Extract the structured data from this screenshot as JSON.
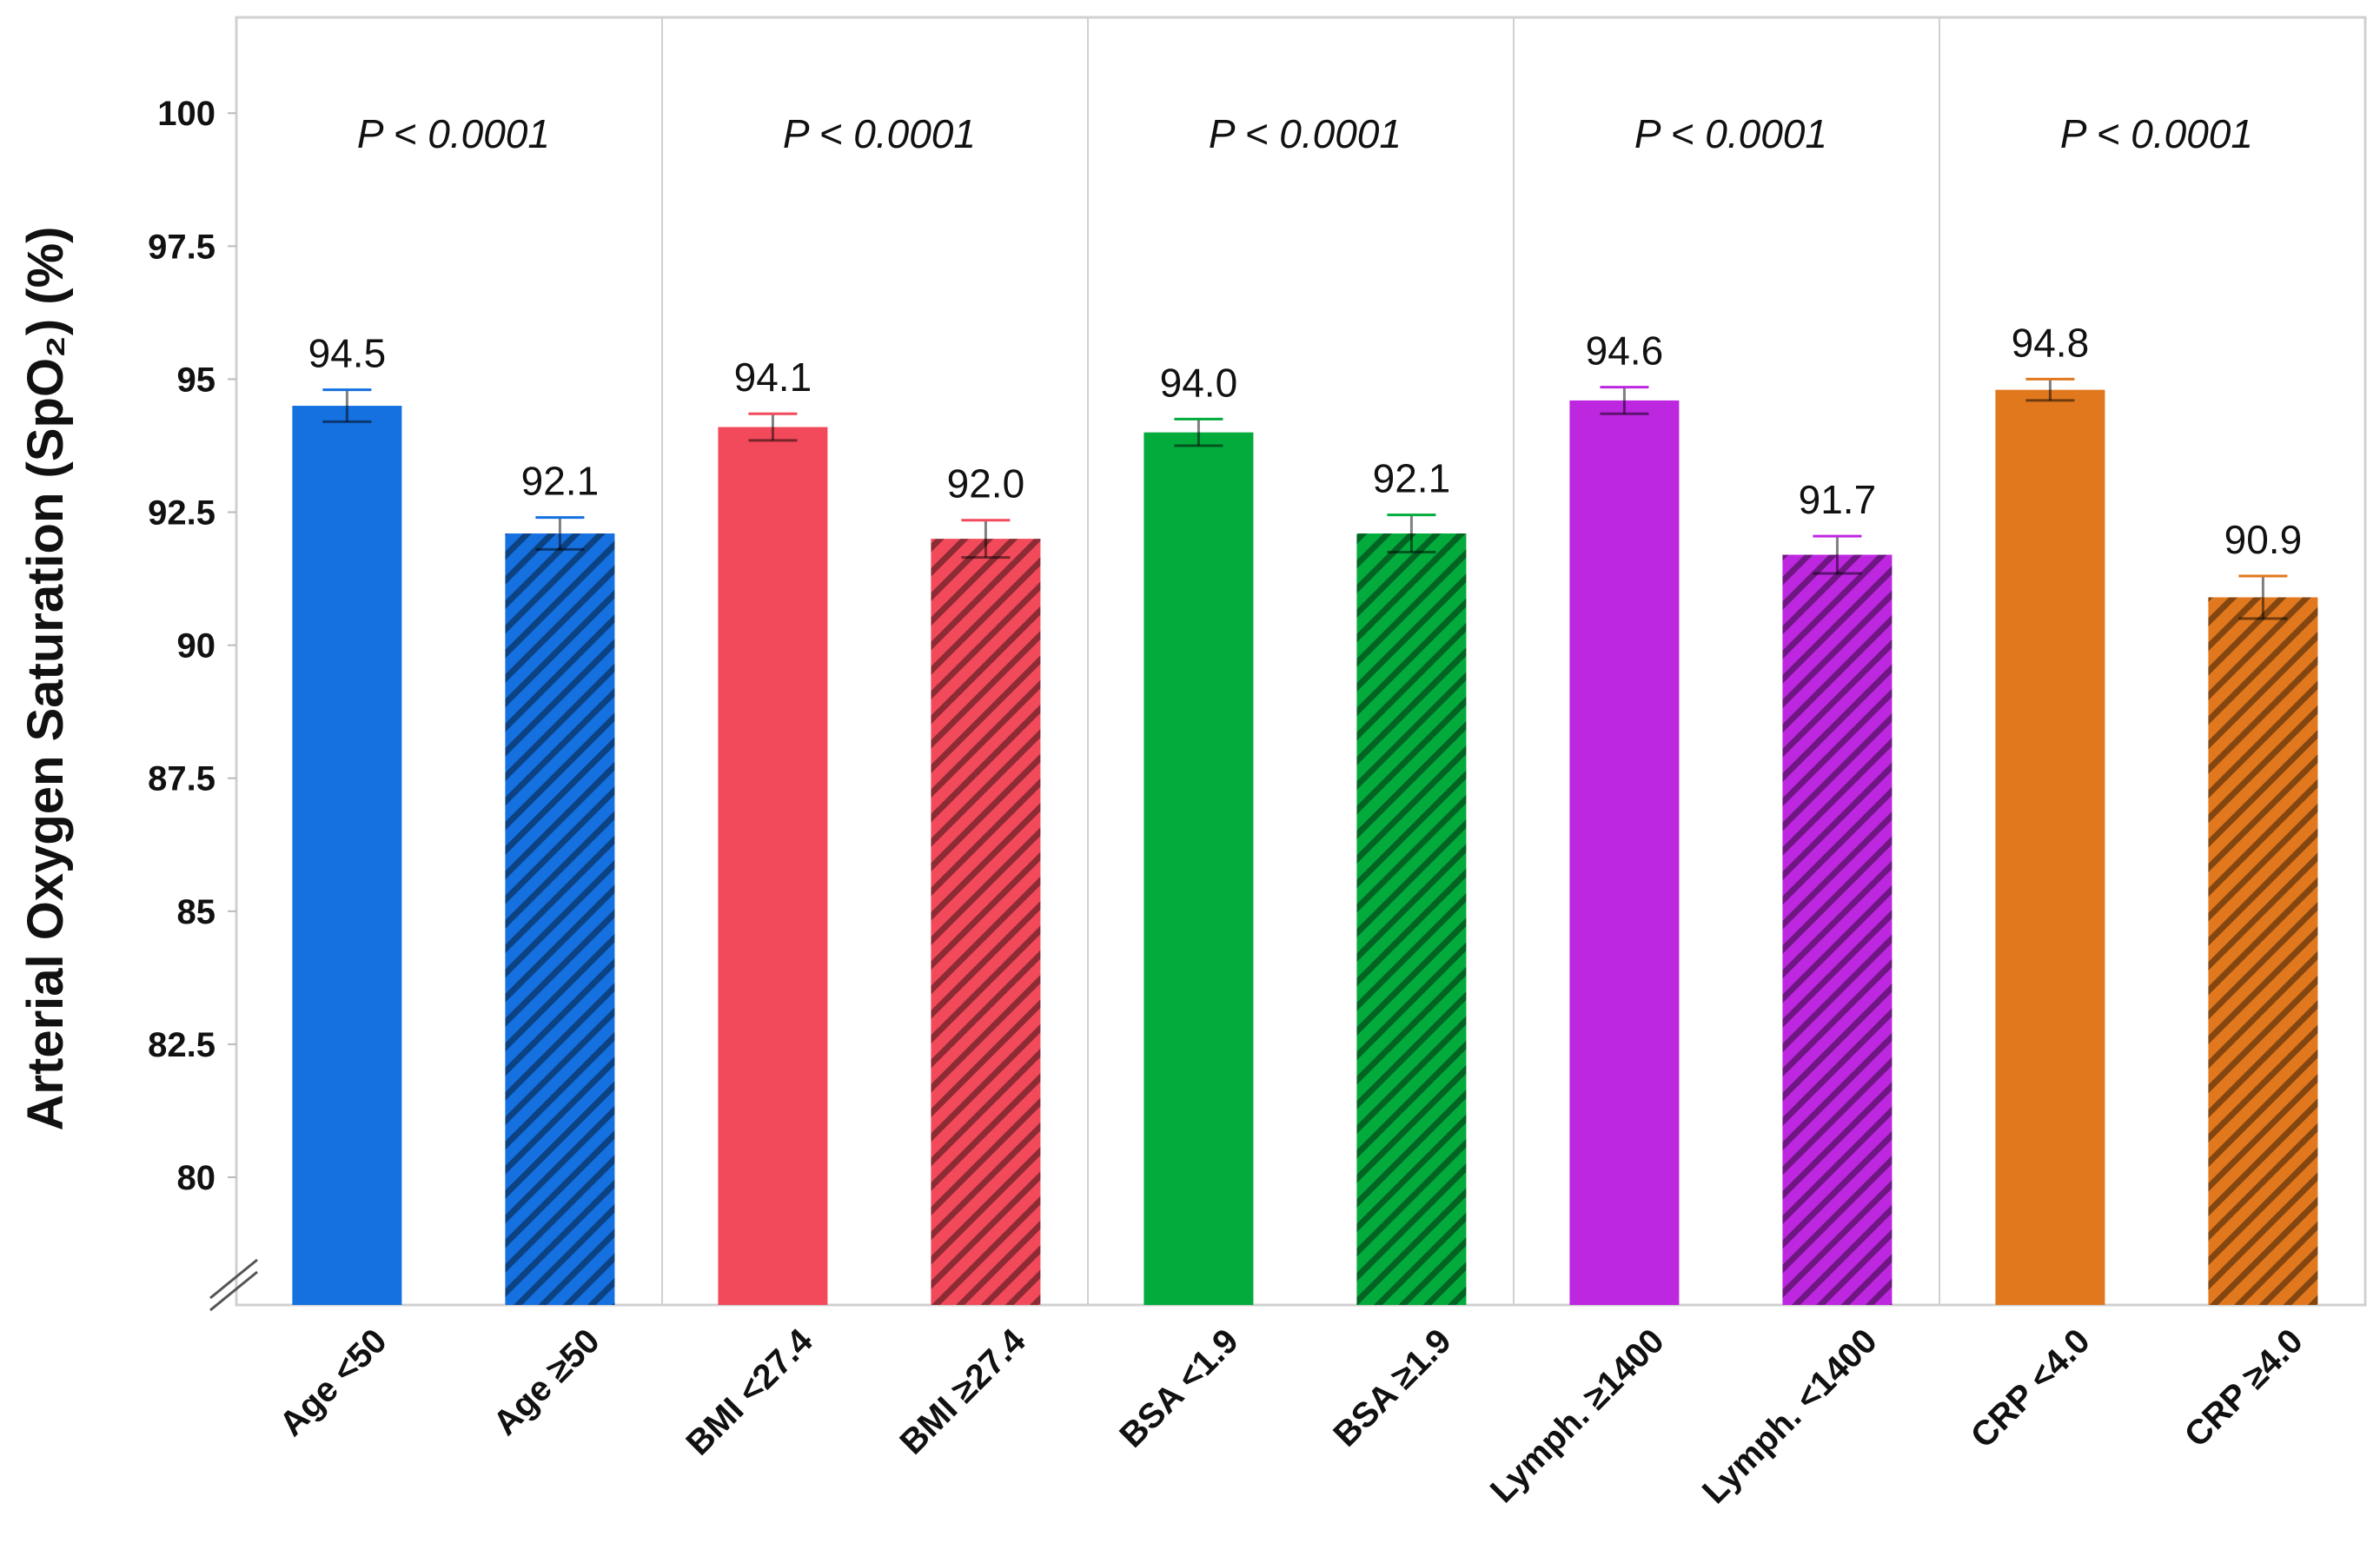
{
  "chart_data": {
    "type": "bar",
    "title": "",
    "xlabel": "",
    "ylabel": "Arterial Oxygen Saturation (SpO₂) (%)",
    "ylim": [
      77.6,
      101.8
    ],
    "axis_break": true,
    "yticks": [
      80,
      82.5,
      85,
      87.5,
      90,
      92.5,
      95,
      97.5,
      100
    ],
    "ytick_labels": [
      "80",
      "82.5",
      "85",
      "87.5",
      "90",
      "92.5",
      "95",
      "97.5",
      "100"
    ],
    "categories": [
      "Age <50",
      "Age ≥50",
      "BMI <27.4",
      "BMI ≥27.4",
      "BSA <1.9",
      "BSA ≥1.9",
      "Lymph. ≥1400",
      "Lymph. <1400",
      "CRP <4.0",
      "CRP ≥4.0"
    ],
    "values": [
      94.5,
      92.1,
      94.1,
      92.0,
      94.0,
      92.1,
      94.6,
      91.7,
      94.8,
      90.9
    ],
    "value_labels": [
      "94.5",
      "92.1",
      "94.1",
      "92.0",
      "94.0",
      "92.1",
      "94.6",
      "91.7",
      "94.8",
      "90.9"
    ],
    "error": [
      0.3,
      0.3,
      0.25,
      0.35,
      0.25,
      0.35,
      0.25,
      0.35,
      0.2,
      0.4
    ],
    "hatched": [
      false,
      true,
      false,
      true,
      false,
      true,
      false,
      true,
      false,
      true
    ],
    "groups": [
      {
        "name": "Age",
        "color": "#1570e0",
        "p_value": "P < 0.0001"
      },
      {
        "name": "BMI",
        "color": "#f24a5a",
        "p_value": "P < 0.0001"
      },
      {
        "name": "BSA",
        "color": "#03ab3c",
        "p_value": "P < 0.0001"
      },
      {
        "name": "Lymph.",
        "color": "#bd27e0",
        "p_value": "P < 0.0001"
      },
      {
        "name": "CRP",
        "color": "#e2781e",
        "p_value": "P < 0.0001"
      }
    ],
    "grid": false,
    "legend": "none"
  }
}
